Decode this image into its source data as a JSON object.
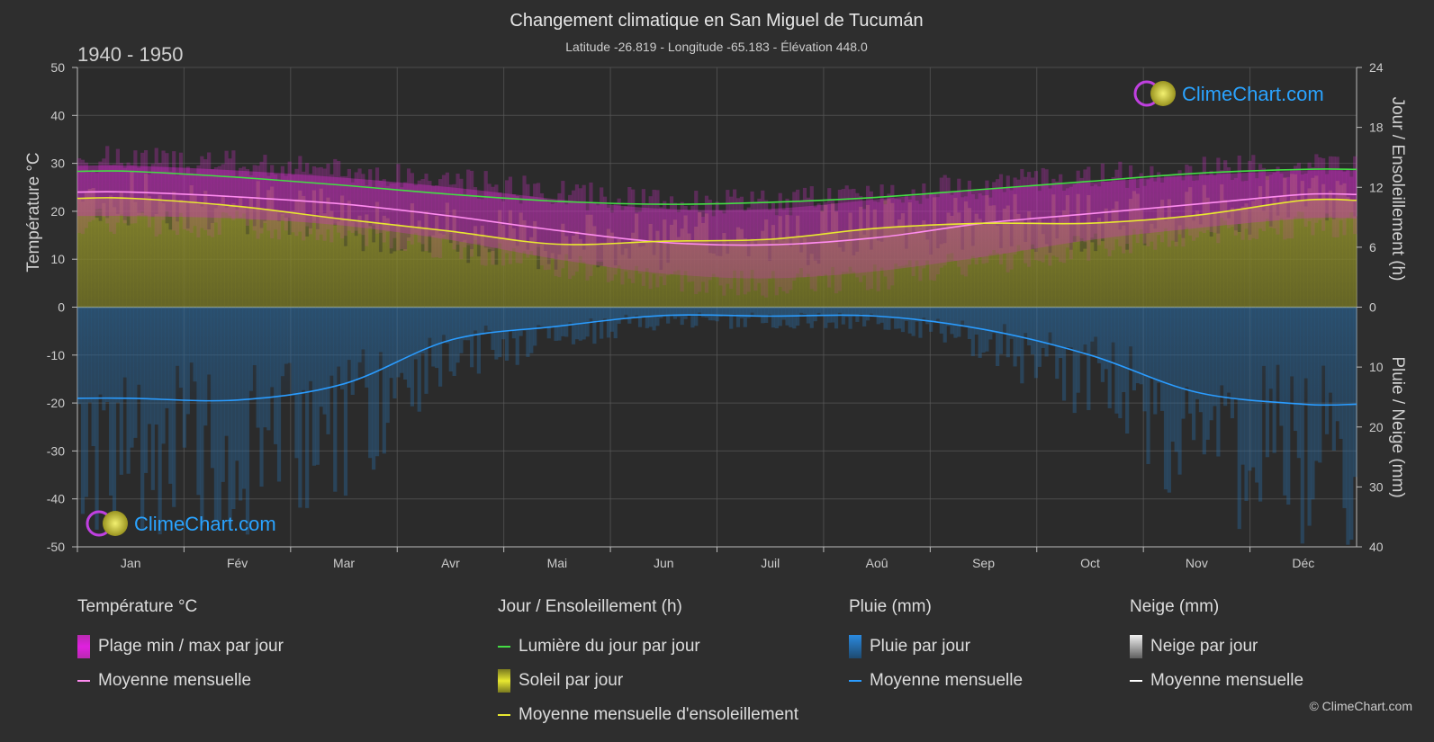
{
  "header": {
    "title": "Changement climatique en San Miguel de Tucumán",
    "subtitle": "Latitude -26.819 - Longitude -65.183 - Élévation 448.0",
    "period": "1940 - 1950"
  },
  "brand": {
    "logo_text": "ClimeChart.com",
    "copyright": "© ClimeChart.com"
  },
  "colors": {
    "background": "#2e2e2e",
    "temp_range": "#d62ad0",
    "temp_mean": "#ff8cf0",
    "daylight": "#44dd44",
    "sunshine_fill": "#9a9a2a",
    "sunshine_mean": "#e8e830",
    "rain_fill": "#2a6fa8",
    "rain_mean": "#2a9cff",
    "snow_mean": "#ffffff"
  },
  "chart_data": {
    "type": "area",
    "months": [
      "Jan",
      "Fév",
      "Mar",
      "Avr",
      "Mai",
      "Jun",
      "Juil",
      "Aoû",
      "Sep",
      "Oct",
      "Nov",
      "Déc"
    ],
    "axes": {
      "left": {
        "title": "Température °C",
        "range": [
          -50,
          50
        ],
        "ticks": [
          "50",
          "40",
          "30",
          "20",
          "10",
          "0",
          "-10",
          "-20",
          "-30",
          "-40",
          "-50"
        ]
      },
      "right_top": {
        "title": "Jour / Ensoleillement (h)",
        "range": [
          0,
          24
        ],
        "ticks": [
          "24",
          "18",
          "12",
          "6",
          "0"
        ]
      },
      "right_bottom": {
        "title": "Pluie / Neige (mm)",
        "range": [
          0,
          40
        ],
        "ticks": [
          "0",
          "10",
          "20",
          "30",
          "40"
        ]
      }
    },
    "grid": true,
    "series": [
      {
        "name": "Lumière du jour par jour",
        "unit": "h",
        "values": [
          13.6,
          13.0,
          12.2,
          11.3,
          10.6,
          10.3,
          10.5,
          11.0,
          11.8,
          12.6,
          13.4,
          13.8
        ]
      },
      {
        "name": "Moyenne mensuelle d'ensoleillement",
        "unit": "h",
        "values": [
          10.9,
          10.1,
          8.8,
          7.6,
          6.3,
          6.6,
          6.8,
          7.9,
          8.4,
          8.4,
          9.2,
          10.7
        ]
      },
      {
        "name": "Moyenne mensuelle",
        "group": "Température °C",
        "unit": "°C",
        "values": [
          24.0,
          23.0,
          21.5,
          19.0,
          16.0,
          13.5,
          13.0,
          14.5,
          17.5,
          19.5,
          21.5,
          23.5
        ]
      },
      {
        "name": "Plage min / max par jour",
        "unit": "°C",
        "max": [
          29.5,
          28.5,
          27.0,
          25.0,
          22.5,
          20.5,
          20.5,
          22.5,
          24.5,
          26.0,
          27.5,
          28.5
        ],
        "min": [
          19.0,
          18.5,
          17.0,
          14.0,
          10.0,
          7.0,
          6.0,
          7.5,
          10.5,
          14.0,
          16.5,
          18.5
        ]
      },
      {
        "name": "Moyenne mensuelle",
        "group": "Pluie (mm)",
        "unit": "mm",
        "values": [
          15.2,
          15.5,
          12.8,
          5.5,
          3.2,
          1.4,
          1.5,
          1.5,
          3.7,
          8.0,
          14.2,
          16.2
        ]
      },
      {
        "name": "Moyenne mensuelle",
        "group": "Neige (mm)",
        "unit": "mm",
        "values": [
          0,
          0,
          0,
          0,
          0,
          0,
          0,
          0,
          0,
          0,
          0,
          0
        ]
      }
    ]
  },
  "legend": [
    {
      "heading": "Température °C",
      "items": [
        {
          "label": "Plage min / max par jour",
          "kind": "box",
          "color": "#d62ad0"
        },
        {
          "label": "Moyenne mensuelle",
          "kind": "line",
          "color": "#ff8cf0"
        }
      ]
    },
    {
      "heading": "Jour / Ensoleillement (h)",
      "items": [
        {
          "label": "Lumière du jour par jour",
          "kind": "line",
          "color": "#44dd44"
        },
        {
          "label": "Soleil par jour",
          "kind": "box",
          "color": "#b8b832"
        },
        {
          "label": "Moyenne mensuelle d'ensoleillement",
          "kind": "line",
          "color": "#e8e830"
        }
      ]
    },
    {
      "heading": "Pluie (mm)",
      "items": [
        {
          "label": "Pluie par jour",
          "kind": "box",
          "color": "#2a8ae0"
        },
        {
          "label": "Moyenne mensuelle",
          "kind": "line",
          "color": "#2a9cff"
        }
      ]
    },
    {
      "heading": "Neige (mm)",
      "items": [
        {
          "label": "Neige par jour",
          "kind": "box",
          "color": "#d8d8d8"
        },
        {
          "label": "Moyenne mensuelle",
          "kind": "line",
          "color": "#ffffff"
        }
      ]
    }
  ]
}
